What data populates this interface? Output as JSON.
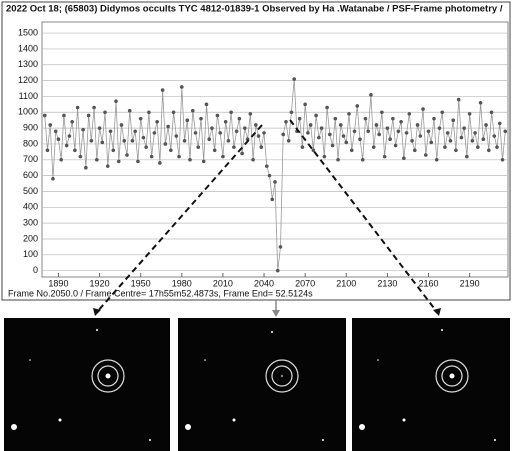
{
  "chart_data": {
    "type": "line",
    "title": "2022 Oct 18; (65803) Didymos occults TYC 4812-01839-1 Observed by Ha .Watanabe / PSF-Frame photometry /",
    "footer": "Frame No.2050.0 / Frame Centre= 17h55m52.4873s, Frame End= 52.5124s",
    "x": [
      1880,
      1882,
      1884,
      1886,
      1888,
      1890,
      1892,
      1894,
      1896,
      1898,
      1900,
      1902,
      1904,
      1906,
      1908,
      1910,
      1912,
      1914,
      1916,
      1918,
      1920,
      1922,
      1924,
      1926,
      1928,
      1930,
      1932,
      1934,
      1936,
      1938,
      1940,
      1942,
      1944,
      1946,
      1948,
      1950,
      1952,
      1954,
      1956,
      1958,
      1960,
      1962,
      1964,
      1966,
      1968,
      1970,
      1972,
      1974,
      1976,
      1978,
      1980,
      1982,
      1984,
      1986,
      1988,
      1990,
      1992,
      1994,
      1996,
      1998,
      2000,
      2002,
      2004,
      2006,
      2008,
      2010,
      2012,
      2014,
      2016,
      2018,
      2020,
      2022,
      2024,
      2026,
      2028,
      2030,
      2032,
      2034,
      2036,
      2038,
      2040,
      2042,
      2044,
      2046,
      2048,
      2050,
      2052,
      2054,
      2056,
      2058,
      2060,
      2062,
      2064,
      2066,
      2068,
      2070,
      2072,
      2074,
      2076,
      2078,
      2080,
      2082,
      2084,
      2086,
      2088,
      2090,
      2092,
      2094,
      2096,
      2098,
      2100,
      2102,
      2104,
      2106,
      2108,
      2110,
      2112,
      2114,
      2116,
      2118,
      2120,
      2122,
      2124,
      2126,
      2128,
      2130,
      2132,
      2134,
      2136,
      2138,
      2140,
      2142,
      2144,
      2146,
      2148,
      2150,
      2152,
      2154,
      2156,
      2158,
      2160,
      2162,
      2164,
      2166,
      2168,
      2170,
      2172,
      2174,
      2176,
      2178,
      2180,
      2182,
      2184,
      2186,
      2188,
      2190,
      2192,
      2194,
      2196,
      2198,
      2200,
      2202,
      2204,
      2206,
      2208,
      2210,
      2212,
      2214,
      2216
    ],
    "values": [
      980,
      760,
      920,
      580,
      880,
      830,
      700,
      980,
      790,
      850,
      940,
      760,
      1030,
      720,
      890,
      650,
      980,
      820,
      1030,
      700,
      900,
      810,
      1000,
      660,
      880,
      760,
      1070,
      690,
      920,
      820,
      730,
      1010,
      820,
      880,
      690,
      960,
      840,
      780,
      1000,
      720,
      870,
      940,
      680,
      1140,
      800,
      910,
      760,
      1000,
      850,
      720,
      1160,
      820,
      950,
      700,
      1010,
      870,
      780,
      960,
      690,
      1050,
      830,
      900,
      760,
      980,
      870,
      720,
      940,
      820,
      1000,
      780,
      880,
      960,
      740,
      900,
      830,
      990,
      700,
      920,
      850,
      780,
      870,
      660,
      600,
      450,
      560,
      0,
      150,
      860,
      940,
      820,
      1000,
      1210,
      880,
      960,
      780,
      1050,
      870,
      920,
      760,
      980,
      840,
      900,
      720,
      1030,
      860,
      790,
      960,
      700,
      920,
      850,
      810,
      990,
      760,
      880,
      1040,
      830,
      700,
      960,
      880,
      1110,
      780,
      920,
      860,
      1000,
      720,
      900,
      830,
      960,
      790,
      880,
      940,
      710,
      870,
      990,
      820,
      760,
      920,
      850,
      1020,
      730,
      880,
      810,
      960,
      700,
      900,
      1000,
      780,
      870,
      820,
      950,
      760,
      1080,
      840,
      900,
      720,
      990,
      820,
      870,
      780,
      1060,
      830,
      920,
      760,
      1000,
      850,
      780,
      930,
      700,
      880
    ],
    "color": "#555555",
    "xlim": [
      1878,
      2218
    ],
    "ylim": [
      -40,
      1570
    ],
    "xticks": [
      1890,
      1920,
      1950,
      1980,
      2010,
      2040,
      2070,
      2100,
      2130,
      2160,
      2190
    ],
    "yticks": [
      0,
      100,
      200,
      300,
      400,
      500,
      600,
      700,
      800,
      900,
      1000,
      1100,
      1200,
      1300,
      1400,
      1500
    ],
    "grid": true
  }
}
